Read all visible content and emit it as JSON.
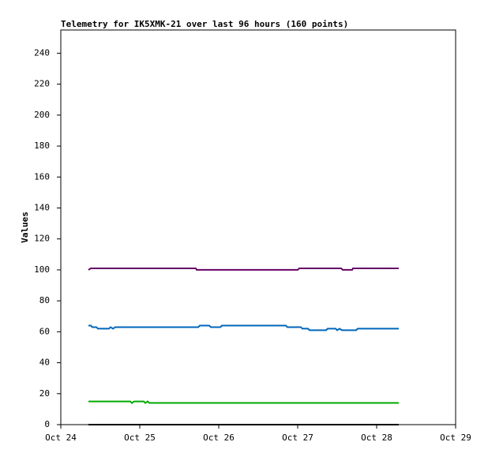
{
  "chart_data": {
    "type": "line",
    "title": "Telemetry for IK5XMK-21 over last 96 hours (160 points)",
    "y_label": "Values",
    "xlim": [
      0,
      5
    ],
    "xticks": [
      {
        "value": 0,
        "label": "Oct 24"
      },
      {
        "value": 1,
        "label": "Oct 25"
      },
      {
        "value": 2,
        "label": "Oct 26"
      },
      {
        "value": 3,
        "label": "Oct 27"
      },
      {
        "value": 4,
        "label": "Oct 28"
      },
      {
        "value": 5,
        "label": "Oct 29"
      }
    ],
    "ylim": [
      0,
      255
    ],
    "yticks": [
      0,
      20,
      40,
      60,
      80,
      100,
      120,
      140,
      160,
      180,
      200,
      220,
      240
    ],
    "series": [
      {
        "color": "#660066",
        "x": [
          0.35,
          0.38,
          1.71,
          1.72,
          3.0,
          3.02,
          3.55,
          3.57,
          3.69,
          3.7,
          4.28
        ],
        "values": [
          100,
          101,
          101,
          100,
          100,
          101,
          101,
          100,
          100,
          101,
          101
        ]
      },
      {
        "color": "#0066bb",
        "x": [
          0.35,
          0.38,
          0.4,
          0.45,
          0.47,
          0.61,
          0.63,
          0.66,
          0.69,
          1.74,
          1.76,
          1.88,
          1.9,
          2.02,
          2.04,
          2.85,
          2.87,
          3.04,
          3.06,
          3.13,
          3.15,
          3.36,
          3.38,
          3.48,
          3.5,
          3.53,
          3.56,
          3.74,
          3.76,
          4.28
        ],
        "values": [
          64,
          64,
          63,
          63,
          62,
          62,
          63,
          62,
          63,
          63,
          64,
          64,
          63,
          63,
          64,
          64,
          63,
          63,
          62,
          62,
          61,
          61,
          62,
          62,
          61,
          62,
          61,
          61,
          62,
          62
        ]
      },
      {
        "color": "#00aa00",
        "x": [
          0.35,
          0.88,
          0.9,
          0.93,
          1.05,
          1.07,
          1.1,
          1.12,
          4.28
        ],
        "values": [
          15,
          15,
          14,
          15,
          15,
          14,
          15,
          14,
          14
        ]
      },
      {
        "color": "#000000",
        "x": [
          0.35,
          4.28
        ],
        "values": [
          0,
          0
        ]
      }
    ]
  }
}
